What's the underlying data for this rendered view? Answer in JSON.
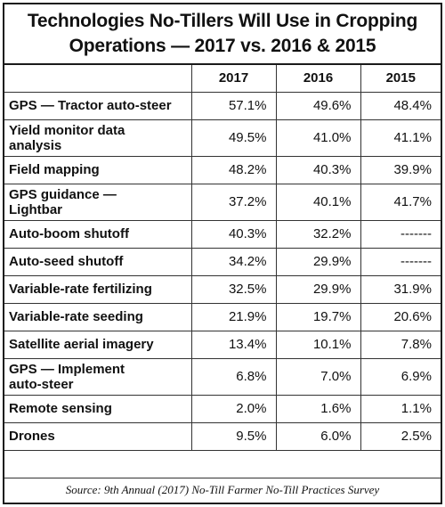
{
  "chart_data": {
    "type": "table",
    "title_lines": [
      "Technologies No-Tillers Will Use  in Cropping",
      "Operations — 2017 vs. 2016 & 2015"
    ],
    "columns": [
      "",
      "2017",
      "2016",
      "2015"
    ],
    "rows": [
      {
        "label": [
          "GPS — Tractor auto-steer"
        ],
        "values": [
          "57.1%",
          "49.6%",
          "48.4%"
        ]
      },
      {
        "label": [
          "Yield monitor data",
          "analysis"
        ],
        "values": [
          "49.5%",
          "41.0%",
          "41.1%"
        ]
      },
      {
        "label": [
          "Field mapping"
        ],
        "values": [
          "48.2%",
          "40.3%",
          "39.9%"
        ]
      },
      {
        "label": [
          "GPS guidance —",
          "Lightbar"
        ],
        "values": [
          "37.2%",
          "40.1%",
          "41.7%"
        ]
      },
      {
        "label": [
          "Auto-boom shutoff"
        ],
        "values": [
          "40.3%",
          "32.2%",
          "-------"
        ]
      },
      {
        "label": [
          "Auto-seed shutoff"
        ],
        "values": [
          "34.2%",
          "29.9%",
          "-------"
        ]
      },
      {
        "label": [
          "Variable-rate fertilizing"
        ],
        "values": [
          "32.5%",
          "29.9%",
          "31.9%"
        ]
      },
      {
        "label": [
          "Variable-rate seeding"
        ],
        "values": [
          "21.9%",
          "19.7%",
          "20.6%"
        ]
      },
      {
        "label": [
          "Satellite aerial imagery"
        ],
        "values": [
          "13.4%",
          "10.1%",
          "7.8%"
        ]
      },
      {
        "label": [
          "GPS — Implement",
          "auto-steer"
        ],
        "values": [
          "6.8%",
          "7.0%",
          "6.9%"
        ]
      },
      {
        "label": [
          "Remote sensing"
        ],
        "values": [
          "2.0%",
          "1.6%",
          "1.1%"
        ]
      },
      {
        "label": [
          "Drones"
        ],
        "values": [
          "9.5%",
          "6.0%",
          "2.5%"
        ]
      }
    ],
    "source": "Source: 9th Annual (2017) No-Till Farmer No-Till Practices Survey"
  }
}
